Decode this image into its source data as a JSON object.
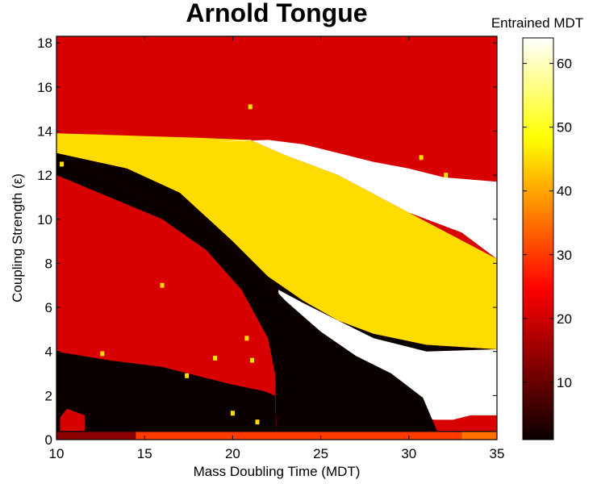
{
  "chart_data": {
    "type": "heatmap",
    "title": "Arnold Tongue",
    "xlabel": "Mass Doubling Time (MDT)",
    "ylabel": "Coupling Strength (ε)",
    "xlim": [
      10,
      35
    ],
    "ylim": [
      0,
      18.3
    ],
    "x_ticks": [
      10,
      15,
      20,
      25,
      30,
      35
    ],
    "y_ticks": [
      0,
      2,
      4,
      6,
      8,
      10,
      12,
      14,
      16,
      18
    ],
    "colormap": "hot",
    "colorbar": {
      "title": "Entrained MDT",
      "range": [
        1,
        64
      ],
      "ticks": [
        10,
        20,
        30,
        40,
        50,
        60
      ]
    },
    "regions": [
      {
        "value": 21,
        "description": "background"
      },
      {
        "value": 45,
        "description": "upper tongue"
      },
      {
        "value": 64,
        "description": "upper band"
      },
      {
        "value": 1,
        "description": "black bands"
      },
      {
        "value": 64,
        "description": "lower band"
      }
    ],
    "speckles": [
      {
        "x": 21,
        "y": 15.1,
        "value": 45
      },
      {
        "x": 30.7,
        "y": 12.8,
        "value": 45
      },
      {
        "x": 32.1,
        "y": 12.0,
        "value": 45
      },
      {
        "x": 16.0,
        "y": 7.0,
        "value": 45
      },
      {
        "x": 20.8,
        "y": 4.6,
        "value": 45
      },
      {
        "x": 19.0,
        "y": 3.7,
        "value": 45
      },
      {
        "x": 21.1,
        "y": 3.6,
        "value": 45
      },
      {
        "x": 12.6,
        "y": 3.9,
        "value": 45
      },
      {
        "x": 17.4,
        "y": 2.9,
        "value": 45
      },
      {
        "x": 20.0,
        "y": 1.2,
        "value": 45
      },
      {
        "x": 21.4,
        "y": 0.8,
        "value": 45
      },
      {
        "x": 10.3,
        "y": 12.5,
        "value": 45
      }
    ]
  }
}
